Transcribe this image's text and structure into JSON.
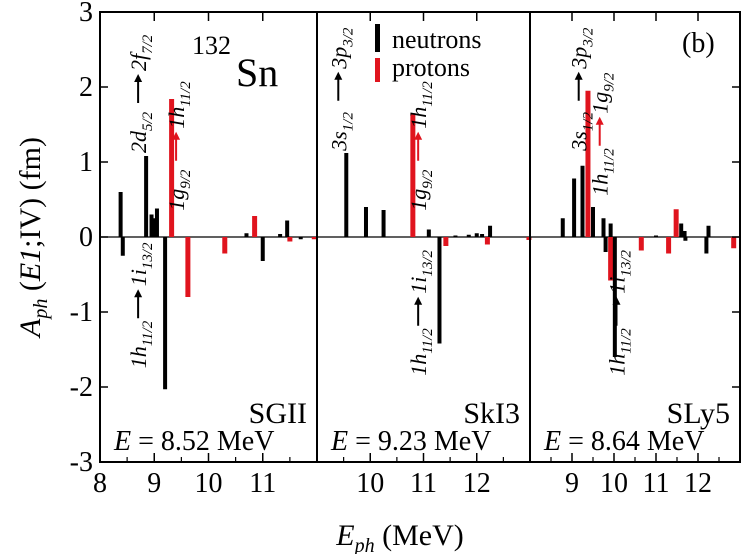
{
  "chart_data": {
    "type": "bar",
    "panel_tag": "(b)",
    "nucleus": {
      "mass": "132",
      "symbol": "Sn"
    },
    "y_axis": {
      "label_main": "A",
      "label_sub": "ph",
      "label_rest_1": " (",
      "label_italic": "E1",
      "label_rest_2": ";IV)   (fm)",
      "ylim": [
        -3,
        3
      ],
      "ticks": [
        -3,
        -2,
        -1,
        0,
        1,
        2,
        3
      ],
      "tick_labels": [
        "-3",
        "-2",
        "-1",
        "0",
        "1",
        "2",
        "3"
      ]
    },
    "x_axis": {
      "label_main": "E",
      "label_sub": "ph",
      "label_rest": " (MeV)"
    },
    "legend": {
      "position": "top-center-panel",
      "entries": [
        {
          "name": "neutrons",
          "color": "#000000"
        },
        {
          "name": "protons",
          "color": "#e0141e"
        }
      ]
    },
    "colors": {
      "neutron": "#000000",
      "proton": "#e0141e"
    },
    "panels": [
      {
        "name": "SGII",
        "energy_prefix": "E",
        "energy_text": " = 8.52 MeV",
        "xlim": [
          8.0,
          12.0
        ],
        "xticks": [
          8,
          9,
          10,
          11
        ],
        "xtick_labels": [
          "8",
          "9",
          "10",
          "11"
        ],
        "bars": [
          {
            "x": 8.38,
            "y": 0.6,
            "type": "n"
          },
          {
            "x": 8.42,
            "y": -0.25,
            "type": "n"
          },
          {
            "x": 8.85,
            "y": 1.08,
            "type": "n"
          },
          {
            "x": 8.95,
            "y": 0.3,
            "type": "n"
          },
          {
            "x": 9.0,
            "y": 0.25,
            "type": "n"
          },
          {
            "x": 9.05,
            "y": 0.38,
            "type": "n"
          },
          {
            "x": 9.2,
            "y": -2.03,
            "type": "n"
          },
          {
            "x": 9.32,
            "y": 1.84,
            "type": "p"
          },
          {
            "x": 9.62,
            "y": -0.8,
            "type": "p"
          },
          {
            "x": 10.3,
            "y": -0.22,
            "type": "p"
          },
          {
            "x": 10.7,
            "y": 0.05,
            "type": "n"
          },
          {
            "x": 10.85,
            "y": 0.28,
            "type": "p"
          },
          {
            "x": 11.0,
            "y": -0.32,
            "type": "n"
          },
          {
            "x": 11.32,
            "y": 0.04,
            "type": "n"
          },
          {
            "x": 11.45,
            "y": 0.22,
            "type": "n"
          },
          {
            "x": 11.5,
            "y": -0.06,
            "type": "p"
          },
          {
            "x": 11.7,
            "y": -0.03,
            "type": "n"
          },
          {
            "x": 11.95,
            "y": -0.03,
            "type": "p"
          }
        ],
        "annotations": [
          {
            "id": "up",
            "pre": "2d",
            "pre_sub": "5/2",
            "post": "2f",
            "post_sub": "7/2",
            "color": "#000000"
          },
          {
            "id": "prot",
            "pre": "1g",
            "pre_sub": "9/2",
            "post": "1h",
            "post_sub": "11/2",
            "color": "#e0141e"
          },
          {
            "id": "down",
            "pre": "1h",
            "pre_sub": "11/2",
            "post": "1i",
            "post_sub": "13/2",
            "color": "#000000"
          }
        ]
      },
      {
        "name": "SkI3",
        "energy_prefix": "E",
        "energy_text": " = 9.23 MeV",
        "xlim": [
          9.0,
          13.0
        ],
        "xticks": [
          10,
          11,
          12
        ],
        "xtick_labels": [
          "10",
          "11",
          "12"
        ],
        "bars": [
          {
            "x": 9.55,
            "y": 1.12,
            "type": "n"
          },
          {
            "x": 9.92,
            "y": 0.4,
            "type": "n"
          },
          {
            "x": 10.25,
            "y": 0.36,
            "type": "n"
          },
          {
            "x": 10.8,
            "y": 1.65,
            "type": "p"
          },
          {
            "x": 11.1,
            "y": 0.1,
            "type": "n"
          },
          {
            "x": 11.3,
            "y": -1.42,
            "type": "n"
          },
          {
            "x": 11.42,
            "y": -0.12,
            "type": "p"
          },
          {
            "x": 11.6,
            "y": 0.02,
            "type": "n"
          },
          {
            "x": 11.85,
            "y": 0.03,
            "type": "n"
          },
          {
            "x": 12.0,
            "y": 0.05,
            "type": "n"
          },
          {
            "x": 12.1,
            "y": 0.04,
            "type": "n"
          },
          {
            "x": 12.25,
            "y": 0.15,
            "type": "n"
          },
          {
            "x": 12.2,
            "y": -0.1,
            "type": "p"
          },
          {
            "x": 12.98,
            "y": -0.04,
            "type": "p"
          }
        ],
        "annotations": [
          {
            "id": "up",
            "pre": "3s",
            "pre_sub": "1/2",
            "post": "3p",
            "post_sub": "3/2",
            "color": "#000000"
          },
          {
            "id": "prot",
            "pre": "1g",
            "pre_sub": "9/2",
            "post": "1h",
            "post_sub": "11/2",
            "color": "#e0141e"
          },
          {
            "id": "down",
            "pre": "1h",
            "pre_sub": "11/2",
            "post": "1i",
            "post_sub": "13/2",
            "color": "#000000"
          }
        ]
      },
      {
        "name": "SLy5",
        "energy_prefix": "E",
        "energy_text": " = 8.64 MeV",
        "xlim": [
          8.0,
          13.0
        ],
        "xticks": [
          9,
          10,
          11,
          12
        ],
        "xtick_labels": [
          "9",
          "10",
          "11",
          "12"
        ],
        "bars": [
          {
            "x": 8.78,
            "y": 0.25,
            "type": "n"
          },
          {
            "x": 9.05,
            "y": 0.78,
            "type": "n"
          },
          {
            "x": 9.25,
            "y": 0.95,
            "type": "n"
          },
          {
            "x": 9.38,
            "y": 1.95,
            "type": "p"
          },
          {
            "x": 9.5,
            "y": 0.4,
            "type": "n"
          },
          {
            "x": 9.75,
            "y": 0.25,
            "type": "n"
          },
          {
            "x": 9.8,
            "y": -0.2,
            "type": "n"
          },
          {
            "x": 9.92,
            "y": 0.18,
            "type": "n"
          },
          {
            "x": 9.92,
            "y": -0.58,
            "type": "p"
          },
          {
            "x": 10.02,
            "y": -1.6,
            "type": "n"
          },
          {
            "x": 10.65,
            "y": -0.18,
            "type": "p"
          },
          {
            "x": 11.0,
            "y": 0.02,
            "type": "n"
          },
          {
            "x": 11.3,
            "y": -0.22,
            "type": "p"
          },
          {
            "x": 11.48,
            "y": 0.37,
            "type": "p"
          },
          {
            "x": 11.6,
            "y": 0.18,
            "type": "n"
          },
          {
            "x": 11.68,
            "y": 0.08,
            "type": "n"
          },
          {
            "x": 11.7,
            "y": -0.05,
            "type": "n"
          },
          {
            "x": 12.2,
            "y": -0.22,
            "type": "n"
          },
          {
            "x": 12.25,
            "y": 0.15,
            "type": "n"
          },
          {
            "x": 12.85,
            "y": -0.15,
            "type": "p"
          }
        ],
        "annotations": [
          {
            "id": "up",
            "pre": "3s",
            "pre_sub": "1/2",
            "post": "3p",
            "post_sub": "3/2",
            "color": "#000000"
          },
          {
            "id": "prot",
            "pre": "1h",
            "pre_sub": "11/2",
            "post": "1g",
            "post_sub": "9/2",
            "color": "#e0141e"
          },
          {
            "id": "down",
            "pre": "1h",
            "pre_sub": "11/2",
            "post": "1i",
            "post_sub": "13/2",
            "color": "#000000"
          }
        ]
      }
    ]
  }
}
